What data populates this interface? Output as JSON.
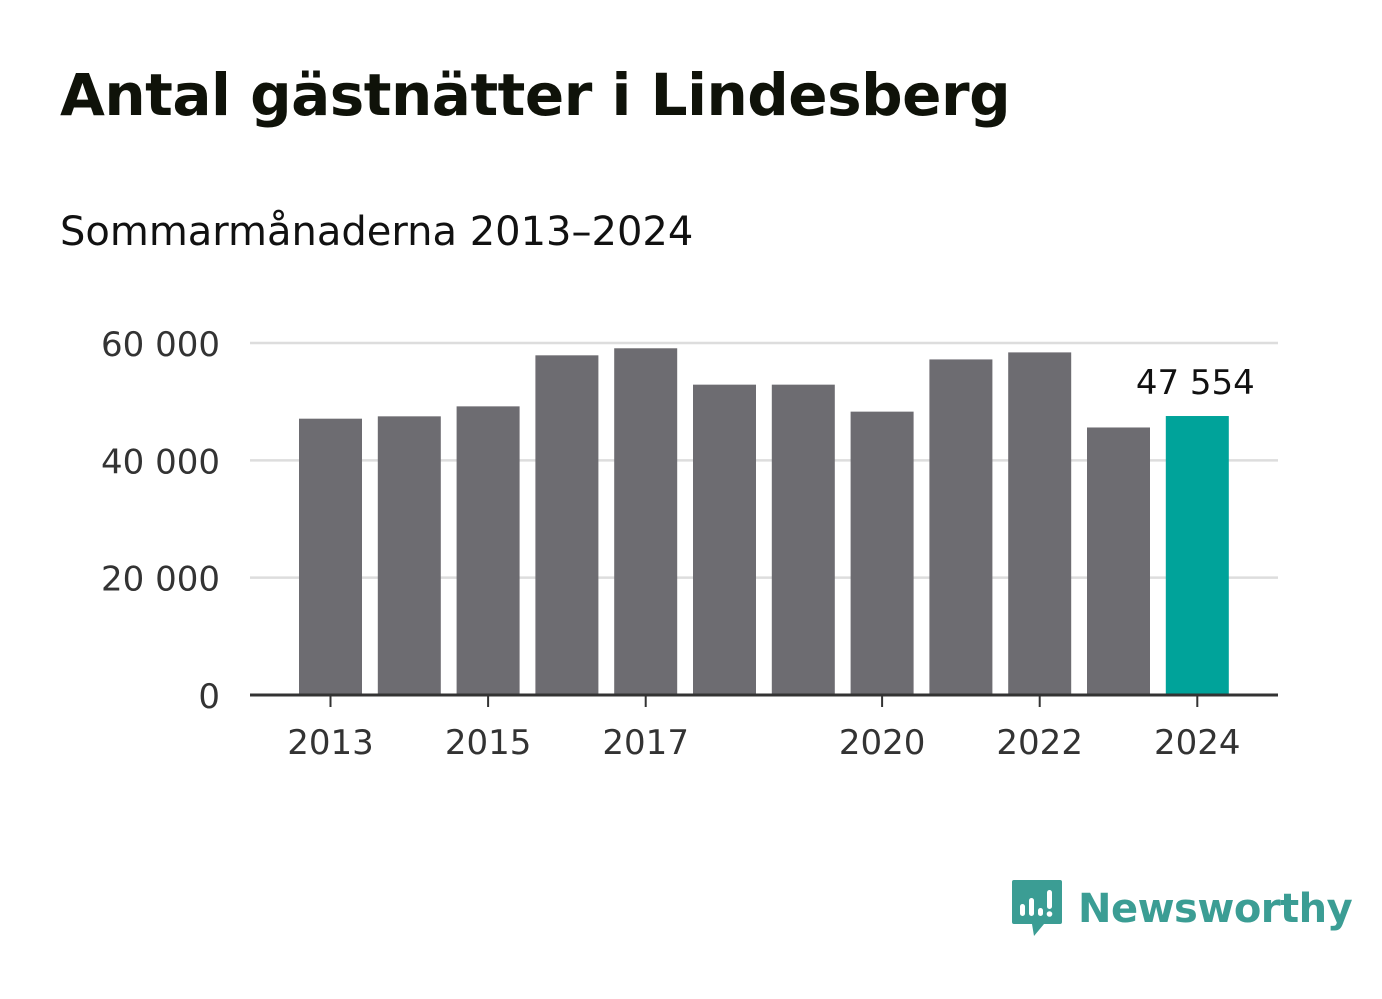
{
  "title": "Antal gästnätter i Lindesberg",
  "subtitle": "Sommarmånaderna 2013–2024",
  "colors": {
    "bar": "#6d6c71",
    "highlight": "#00a39a",
    "grid": "#dddddd",
    "axis": "#333333",
    "tick_text": "#333333",
    "brand": "#3b9d94"
  },
  "chart_data": {
    "type": "bar",
    "categories": [
      "2013",
      "2014",
      "2015",
      "2016",
      "2017",
      "2018",
      "2019",
      "2020",
      "2021",
      "2022",
      "2023",
      "2024"
    ],
    "values": [
      47100,
      47500,
      49200,
      57900,
      59100,
      52900,
      52900,
      48300,
      57200,
      58400,
      45600,
      47554
    ],
    "highlight_index": 11,
    "data_label": "47 554",
    "x_tick_labels": [
      "2013",
      "2015",
      "2017",
      "2020",
      "2022",
      "2024"
    ],
    "y_ticks": [
      0,
      20000,
      40000,
      60000
    ],
    "y_tick_labels": [
      "0",
      "20 000",
      "40 000",
      "60 000"
    ],
    "ylim": [
      0,
      60000
    ],
    "grid": true
  },
  "brand": {
    "name": "Newsworthy",
    "icon": "bar-chart-speech-bubble-icon"
  }
}
